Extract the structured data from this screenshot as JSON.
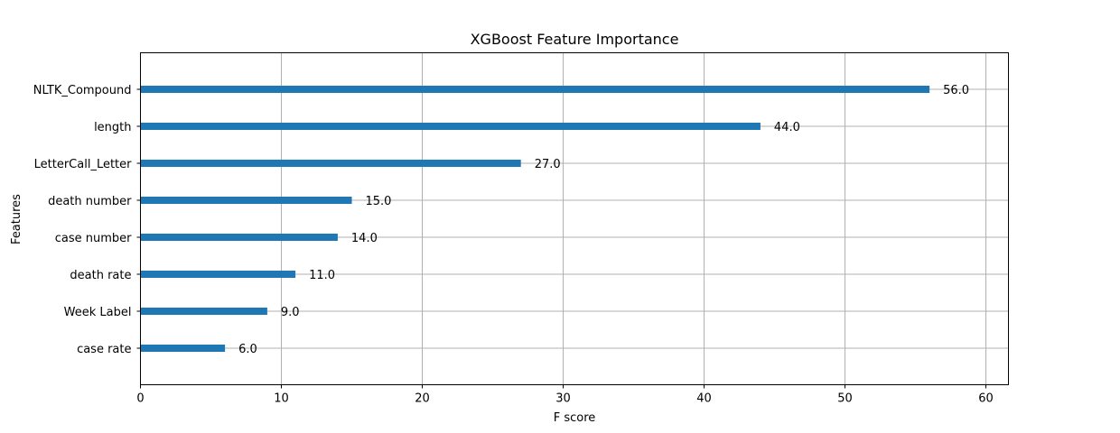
{
  "chart_data": {
    "type": "bar",
    "orientation": "horizontal",
    "title": "XGBoost Feature Importance",
    "xlabel": "F score",
    "ylabel": "Features",
    "categories": [
      "NLTK_Compound",
      "length",
      "LetterCall_Letter",
      "death number",
      "case number",
      "death rate",
      "Week Label",
      "case rate"
    ],
    "values": [
      56.0,
      44.0,
      27.0,
      15.0,
      14.0,
      11.0,
      9.0,
      6.0
    ],
    "data_labels": [
      "56.0",
      "44.0",
      "27.0",
      "15.0",
      "14.0",
      "11.0",
      "9.0",
      "6.0"
    ],
    "xlim": [
      0,
      61.6
    ],
    "xticks": [
      0,
      10,
      20,
      30,
      40,
      50,
      60
    ],
    "xtick_labels": [
      "0",
      "10",
      "20",
      "30",
      "40",
      "50",
      "60"
    ],
    "grid": true,
    "colors": {
      "bar": "#1f77b4",
      "grid": "#b0b0b0",
      "axis": "#000000"
    }
  }
}
